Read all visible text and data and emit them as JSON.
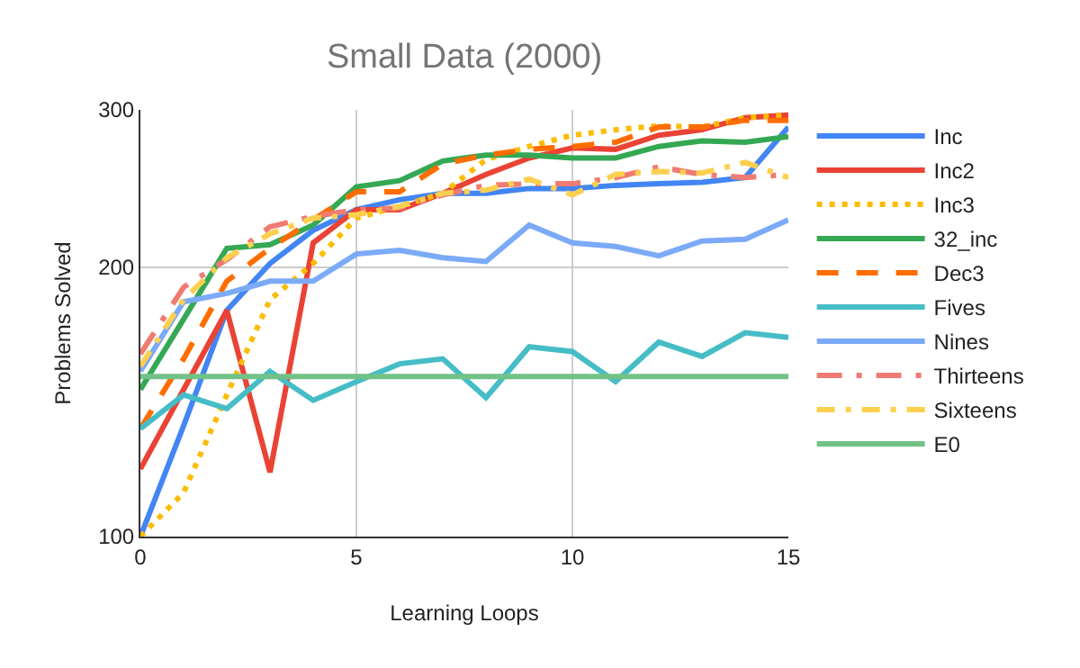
{
  "chart_data": {
    "type": "line",
    "title": "Small Data (2000)",
    "xlabel": "Learning Loops",
    "ylabel": "Problems Solved",
    "x": [
      0,
      1,
      2,
      3,
      4,
      5,
      6,
      7,
      8,
      9,
      10,
      11,
      12,
      13,
      14,
      15
    ],
    "series": [
      {
        "name": "Inc",
        "color": "#4285f4",
        "values": [
          100,
          133,
          179,
          202,
          220,
          232,
          238,
          242,
          242,
          245,
          245,
          247,
          248,
          249,
          252,
          287
        ]
      },
      {
        "name": "Inc2",
        "color": "#ea4335",
        "values": [
          119,
          146,
          179,
          118,
          213,
          232,
          232,
          242,
          254,
          265,
          272,
          271,
          281,
          285,
          294,
          296
        ]
      },
      {
        "name": "Inc3",
        "color": "#fbbc04",
        "line_style": "dotted",
        "values": [
          100,
          112,
          144,
          184,
          202,
          227,
          234,
          242,
          264,
          273,
          281,
          285,
          288,
          287,
          294,
          296
        ]
      },
      {
        "name": "32_inc",
        "color": "#34a853",
        "values": [
          146,
          175,
          210,
          212,
          223,
          246,
          250,
          263,
          267,
          267,
          265,
          265,
          273,
          277,
          276,
          280
        ]
      },
      {
        "name": "Dec3",
        "color": "#ff6d01",
        "line_style": "dashed",
        "values": [
          132,
          158,
          193,
          210,
          226,
          243,
          243,
          261,
          267,
          271,
          273,
          276,
          287,
          287,
          292,
          292
        ]
      },
      {
        "name": "Fives",
        "color": "#46bdc6",
        "values": [
          132,
          144,
          139,
          153,
          142,
          149,
          156,
          158,
          143,
          163,
          161,
          149,
          165,
          159,
          169,
          167
        ]
      },
      {
        "name": "Nines",
        "color": "#7baaf7",
        "values": [
          153,
          183,
          187,
          193,
          193,
          207,
          209,
          205,
          203,
          223,
          213,
          211,
          206,
          214,
          215,
          226
        ]
      },
      {
        "name": "Thirteens",
        "color": "#f07b72",
        "line_style": "longdashdot",
        "values": [
          160,
          190,
          204,
          222,
          228,
          232,
          233,
          241,
          247,
          248,
          248,
          252,
          259,
          254,
          252,
          254
        ]
      },
      {
        "name": "Sixteens",
        "color": "#fcd04f",
        "line_style": "dashdot",
        "values": [
          155,
          184,
          205,
          218,
          227,
          229,
          234,
          242,
          244,
          251,
          241,
          254,
          256,
          255,
          262,
          252
        ]
      },
      {
        "name": "E0",
        "color": "#71c287",
        "values": [
          151,
          151,
          151,
          151,
          151,
          151,
          151,
          151,
          151,
          151,
          151,
          151,
          151,
          151,
          151,
          151
        ]
      }
    ],
    "xlim": [
      0,
      15
    ],
    "xticks": [
      0,
      5,
      10,
      15
    ],
    "ylim": [
      100,
      300
    ],
    "yticks": [
      100,
      200,
      300
    ],
    "log": "y",
    "grid": true,
    "legend": "right"
  }
}
